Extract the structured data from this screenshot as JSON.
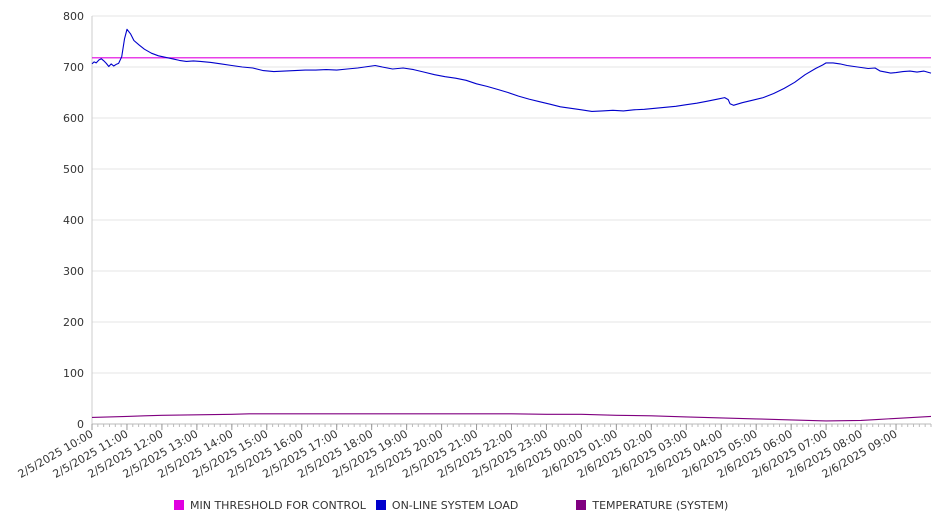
{
  "chart_data": {
    "type": "line",
    "ylim": [
      0,
      800
    ],
    "yticks": [
      0,
      100,
      200,
      300,
      400,
      500,
      600,
      700,
      800
    ],
    "xlim": [
      0,
      24
    ],
    "xticks": [
      {
        "x": 0,
        "label": "2/5/2025 10:00"
      },
      {
        "x": 1,
        "label": "2/5/2025 11:00"
      },
      {
        "x": 2,
        "label": "2/5/2025 12:00"
      },
      {
        "x": 3,
        "label": "2/5/2025 13:00"
      },
      {
        "x": 4,
        "label": "2/5/2025 14:00"
      },
      {
        "x": 5,
        "label": "2/5/2025 15:00"
      },
      {
        "x": 6,
        "label": "2/5/2025 16:00"
      },
      {
        "x": 7,
        "label": "2/5/2025 17:00"
      },
      {
        "x": 8,
        "label": "2/5/2025 18:00"
      },
      {
        "x": 9,
        "label": "2/5/2025 19:00"
      },
      {
        "x": 10,
        "label": "2/5/2025 20:00"
      },
      {
        "x": 11,
        "label": "2/5/2025 21:00"
      },
      {
        "x": 12,
        "label": "2/5/2025 22:00"
      },
      {
        "x": 13,
        "label": "2/5/2025 23:00"
      },
      {
        "x": 14,
        "label": "2/6/2025 00:00"
      },
      {
        "x": 15,
        "label": "2/6/2025 01:00"
      },
      {
        "x": 16,
        "label": "2/6/2025 02:00"
      },
      {
        "x": 17,
        "label": "2/6/2025 03:00"
      },
      {
        "x": 18,
        "label": "2/6/2025 04:00"
      },
      {
        "x": 19,
        "label": "2/6/2025 05:00"
      },
      {
        "x": 20,
        "label": "2/6/2025 06:00"
      },
      {
        "x": 21,
        "label": "2/6/2025 07:00"
      },
      {
        "x": 22,
        "label": "2/6/2025 08:00"
      },
      {
        "x": 23,
        "label": "2/6/2025 09:00"
      }
    ],
    "grid": true,
    "legend_position": "bottom",
    "series": [
      {
        "name": "MIN THRESHOLD FOR CONTROL",
        "color": "#e000e0",
        "points": [
          [
            0,
            718
          ],
          [
            24,
            718
          ]
        ]
      },
      {
        "name": "ON-LINE SYSTEM LOAD",
        "color": "#0000cc",
        "points": [
          [
            0.0,
            706
          ],
          [
            0.06,
            710
          ],
          [
            0.12,
            708
          ],
          [
            0.2,
            714
          ],
          [
            0.27,
            716
          ],
          [
            0.34,
            712
          ],
          [
            0.41,
            707
          ],
          [
            0.48,
            701
          ],
          [
            0.55,
            706
          ],
          [
            0.62,
            702
          ],
          [
            0.69,
            705
          ],
          [
            0.76,
            707
          ],
          [
            0.85,
            720
          ],
          [
            0.93,
            755
          ],
          [
            1.0,
            774
          ],
          [
            1.1,
            765
          ],
          [
            1.2,
            752
          ],
          [
            1.35,
            743
          ],
          [
            1.5,
            735
          ],
          [
            1.7,
            727
          ],
          [
            1.9,
            722
          ],
          [
            2.1,
            719
          ],
          [
            2.3,
            716
          ],
          [
            2.5,
            713
          ],
          [
            2.7,
            711
          ],
          [
            2.9,
            712
          ],
          [
            3.1,
            711
          ],
          [
            3.4,
            709
          ],
          [
            3.7,
            706
          ],
          [
            4.0,
            703
          ],
          [
            4.3,
            700
          ],
          [
            4.6,
            698
          ],
          [
            4.9,
            693
          ],
          [
            5.2,
            691
          ],
          [
            5.5,
            692
          ],
          [
            5.8,
            693
          ],
          [
            6.1,
            694
          ],
          [
            6.4,
            694
          ],
          [
            6.7,
            695
          ],
          [
            7.0,
            694
          ],
          [
            7.3,
            696
          ],
          [
            7.6,
            698
          ],
          [
            7.9,
            701
          ],
          [
            8.1,
            703
          ],
          [
            8.3,
            700
          ],
          [
            8.6,
            696
          ],
          [
            8.9,
            698
          ],
          [
            9.2,
            695
          ],
          [
            9.5,
            690
          ],
          [
            9.8,
            685
          ],
          [
            10.1,
            681
          ],
          [
            10.4,
            678
          ],
          [
            10.7,
            674
          ],
          [
            11.0,
            667
          ],
          [
            11.3,
            662
          ],
          [
            11.6,
            656
          ],
          [
            11.9,
            650
          ],
          [
            12.2,
            643
          ],
          [
            12.5,
            637
          ],
          [
            12.8,
            632
          ],
          [
            13.1,
            627
          ],
          [
            13.4,
            622
          ],
          [
            13.7,
            619
          ],
          [
            14.0,
            616
          ],
          [
            14.3,
            613
          ],
          [
            14.6,
            614
          ],
          [
            14.9,
            615
          ],
          [
            15.2,
            614
          ],
          [
            15.5,
            616
          ],
          [
            15.8,
            617
          ],
          [
            16.1,
            619
          ],
          [
            16.4,
            621
          ],
          [
            16.7,
            623
          ],
          [
            17.0,
            626
          ],
          [
            17.3,
            629
          ],
          [
            17.6,
            633
          ],
          [
            17.9,
            637
          ],
          [
            18.1,
            640
          ],
          [
            18.2,
            636
          ],
          [
            18.25,
            628
          ],
          [
            18.35,
            625
          ],
          [
            18.6,
            630
          ],
          [
            18.9,
            635
          ],
          [
            19.2,
            640
          ],
          [
            19.5,
            648
          ],
          [
            19.8,
            658
          ],
          [
            20.1,
            670
          ],
          [
            20.4,
            685
          ],
          [
            20.7,
            697
          ],
          [
            20.9,
            704
          ],
          [
            21.0,
            708
          ],
          [
            21.2,
            708
          ],
          [
            21.4,
            706
          ],
          [
            21.6,
            703
          ],
          [
            21.8,
            701
          ],
          [
            22.0,
            699
          ],
          [
            22.2,
            697
          ],
          [
            22.4,
            698
          ],
          [
            22.55,
            692
          ],
          [
            22.7,
            690
          ],
          [
            22.85,
            688
          ],
          [
            23.0,
            689
          ],
          [
            23.2,
            691
          ],
          [
            23.4,
            692
          ],
          [
            23.6,
            690
          ],
          [
            23.8,
            692
          ],
          [
            24.0,
            688
          ]
        ]
      },
      {
        "name": "TEMPERATURE (SYSTEM)",
        "color": "#800080",
        "points": [
          [
            0.0,
            13
          ],
          [
            0.5,
            14
          ],
          [
            1.0,
            15
          ],
          [
            1.5,
            16
          ],
          [
            2.0,
            17
          ],
          [
            3.0,
            18
          ],
          [
            4.0,
            19
          ],
          [
            4.5,
            20
          ],
          [
            6.0,
            20
          ],
          [
            8.0,
            20
          ],
          [
            10.0,
            20
          ],
          [
            12.0,
            20
          ],
          [
            13.0,
            19
          ],
          [
            14.0,
            19
          ],
          [
            14.5,
            18
          ],
          [
            15.0,
            17
          ],
          [
            16.0,
            16
          ],
          [
            17.0,
            14
          ],
          [
            18.0,
            12
          ],
          [
            19.0,
            10
          ],
          [
            20.0,
            8
          ],
          [
            21.0,
            6
          ],
          [
            22.0,
            7
          ],
          [
            22.5,
            9
          ],
          [
            23.0,
            11
          ],
          [
            23.5,
            13
          ],
          [
            24.0,
            15
          ]
        ]
      }
    ]
  }
}
